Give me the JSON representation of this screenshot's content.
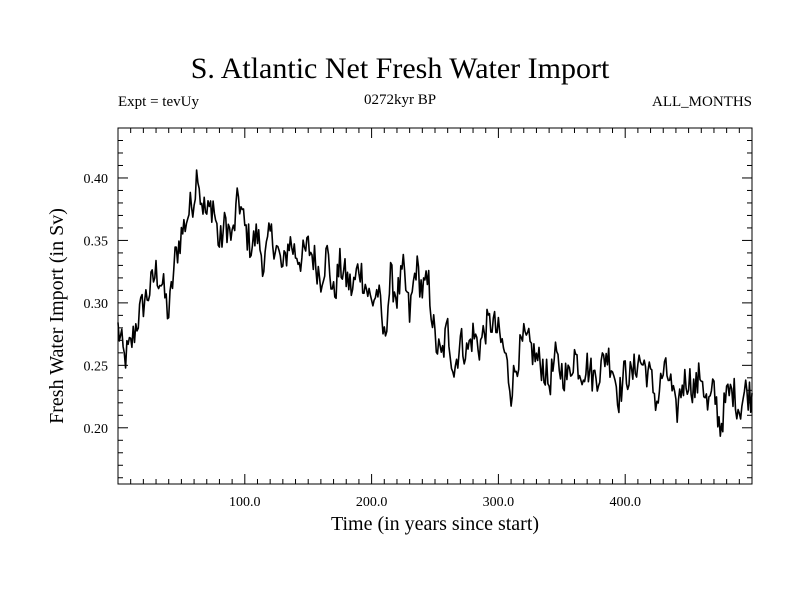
{
  "chart_data": {
    "type": "line",
    "title": "S. Atlantic Net Fresh Water Import",
    "subtitle_left": "Expt = tevUy",
    "subtitle_center": "0272kyr BP",
    "subtitle_right": "ALL_MONTHS",
    "xlabel": "Time (in years since start)",
    "ylabel": "Fresh Water Import (in Sv)",
    "xlim": [
      0,
      500
    ],
    "ylim": [
      0.155,
      0.44
    ],
    "xticks": [
      100,
      200,
      300,
      400
    ],
    "xtick_labels": [
      "100.0",
      "200.0",
      "300.0",
      "400.0"
    ],
    "yticks": [
      0.2,
      0.25,
      0.3,
      0.35,
      0.4
    ],
    "ytick_labels": [
      "0.20",
      "0.25",
      "0.30",
      "0.35",
      "0.40"
    ],
    "grid": false,
    "series": [
      {
        "color": "#000000",
        "x": [
          0,
          5,
          10,
          15,
          20,
          25,
          30,
          35,
          40,
          45,
          50,
          55,
          60,
          63,
          65,
          70,
          75,
          80,
          85,
          90,
          95,
          100,
          105,
          110,
          115,
          120,
          125,
          130,
          135,
          140,
          145,
          150,
          155,
          160,
          165,
          170,
          175,
          180,
          185,
          190,
          195,
          200,
          205,
          210,
          215,
          220,
          225,
          230,
          235,
          240,
          245,
          250,
          255,
          260,
          265,
          270,
          275,
          280,
          285,
          290,
          295,
          300,
          305,
          310,
          315,
          320,
          325,
          330,
          335,
          340,
          345,
          350,
          355,
          360,
          365,
          370,
          375,
          380,
          385,
          390,
          395,
          400,
          405,
          410,
          415,
          420,
          425,
          430,
          435,
          440,
          445,
          450,
          455,
          460,
          465,
          470,
          475,
          480,
          485,
          490,
          495,
          500
        ],
        "y": [
          0.28,
          0.255,
          0.265,
          0.285,
          0.3,
          0.31,
          0.325,
          0.315,
          0.29,
          0.335,
          0.355,
          0.37,
          0.385,
          0.41,
          0.385,
          0.37,
          0.38,
          0.345,
          0.365,
          0.35,
          0.385,
          0.36,
          0.345,
          0.355,
          0.33,
          0.355,
          0.345,
          0.325,
          0.35,
          0.34,
          0.335,
          0.345,
          0.335,
          0.32,
          0.34,
          0.305,
          0.33,
          0.32,
          0.31,
          0.33,
          0.315,
          0.3,
          0.31,
          0.27,
          0.32,
          0.305,
          0.325,
          0.29,
          0.33,
          0.31,
          0.315,
          0.27,
          0.255,
          0.28,
          0.245,
          0.27,
          0.26,
          0.275,
          0.265,
          0.28,
          0.285,
          0.275,
          0.26,
          0.23,
          0.255,
          0.27,
          0.265,
          0.255,
          0.25,
          0.235,
          0.255,
          0.245,
          0.24,
          0.26,
          0.245,
          0.25,
          0.24,
          0.245,
          0.26,
          0.25,
          0.225,
          0.245,
          0.24,
          0.255,
          0.25,
          0.24,
          0.22,
          0.245,
          0.24,
          0.21,
          0.235,
          0.24,
          0.23,
          0.245,
          0.215,
          0.23,
          0.2,
          0.225,
          0.23,
          0.215,
          0.23,
          0.225
        ]
      }
    ]
  }
}
